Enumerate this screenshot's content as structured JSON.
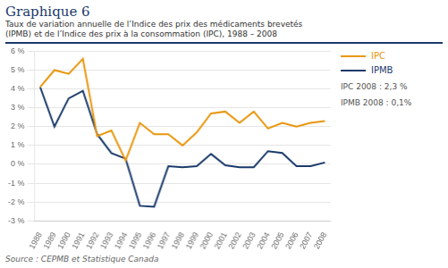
{
  "chart_data": {
    "type": "line",
    "title": "Graphique 6",
    "subtitle": [
      "Taux de variation annuelle de l’Indice des prix des médicaments brevetés",
      "(IPMB) et de l’Indice des prix à la consommation (IPC), 1988 – 2008"
    ],
    "annotations": [
      "IPC 2008 : 2,3 %",
      "IPMB 2008 : 0,1%"
    ],
    "source": "Source : CEPMB et Statistique Canada",
    "x": [
      1988,
      1989,
      1990,
      1991,
      1992,
      1993,
      1994,
      1995,
      1996,
      1997,
      1998,
      1999,
      2000,
      2001,
      2002,
      2003,
      2004,
      2005,
      2006,
      2007,
      2008
    ],
    "series": [
      {
        "name": "IPC",
        "color": "#e8960c",
        "values": [
          4.1,
          5.0,
          4.8,
          5.6,
          1.5,
          1.8,
          0.2,
          2.2,
          1.6,
          1.6,
          1.0,
          1.7,
          2.7,
          2.8,
          2.2,
          2.8,
          1.9,
          2.2,
          2.0,
          2.2,
          2.3
        ]
      },
      {
        "name": "IPMB",
        "color": "#1a3a6b",
        "values": [
          4.1,
          2.0,
          3.5,
          3.9,
          1.6,
          0.6,
          0.3,
          -2.2,
          -2.25,
          -0.1,
          -0.15,
          -0.1,
          0.55,
          -0.05,
          -0.15,
          -0.15,
          0.7,
          0.6,
          -0.1,
          -0.1,
          0.1
        ]
      }
    ],
    "xlim": [
      1987.6,
      2008.4
    ],
    "xticks": [
      1988,
      1989,
      1990,
      1991,
      1992,
      1993,
      1994,
      1995,
      1996,
      1997,
      1998,
      1999,
      2000,
      2001,
      2002,
      2003,
      2004,
      2005,
      2006,
      2007,
      2008
    ],
    "ylim": [
      -3,
      6
    ],
    "yticks": [
      {
        "value": -3,
        "label": "-3 %"
      },
      {
        "value": -2,
        "label": "-2 %"
      },
      {
        "value": -1,
        "label": "-1 %"
      },
      {
        "value": 0,
        "label": "0 %"
      },
      {
        "value": 1,
        "label": "1 %"
      },
      {
        "value": 2,
        "label": "2 %"
      },
      {
        "value": 3,
        "label": "3 %"
      },
      {
        "value": 4,
        "label": "4 %"
      },
      {
        "value": 5,
        "label": "5 %"
      },
      {
        "value": 6,
        "label": "6 %"
      }
    ],
    "grid": true,
    "legend": "right"
  }
}
